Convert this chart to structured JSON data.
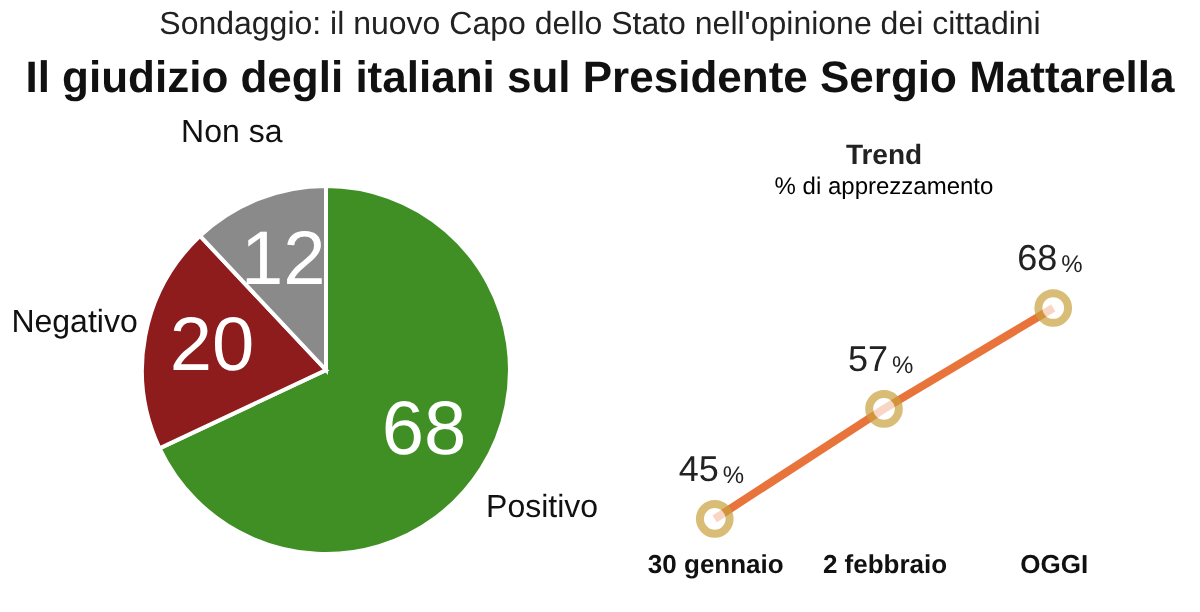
{
  "chart_data": [
    {
      "type": "pie",
      "title": "Il giudizio degli italiani sul Presidente Sergio Mattarella",
      "subtitle": "Sondaggio: il nuovo Capo dello Stato nell'opinione dei cittadini",
      "categories": [
        "Positivo",
        "Negativo",
        "Non sa"
      ],
      "values": [
        68,
        20,
        12
      ],
      "colors": [
        "#3f8f24",
        "#8e1c1c",
        "#8a8a8a"
      ],
      "data_labels": true
    },
    {
      "type": "line",
      "title": "Trend",
      "subtitle": "% di apprezzamento",
      "categories": [
        "30 gennaio",
        "2 febbraio",
        "OGGI"
      ],
      "series": [
        {
          "color": "#e8743b",
          "values": [
            45,
            57,
            68
          ]
        }
      ],
      "data_labels": true,
      "ylabel": "%",
      "marker": "circle"
    }
  ]
}
